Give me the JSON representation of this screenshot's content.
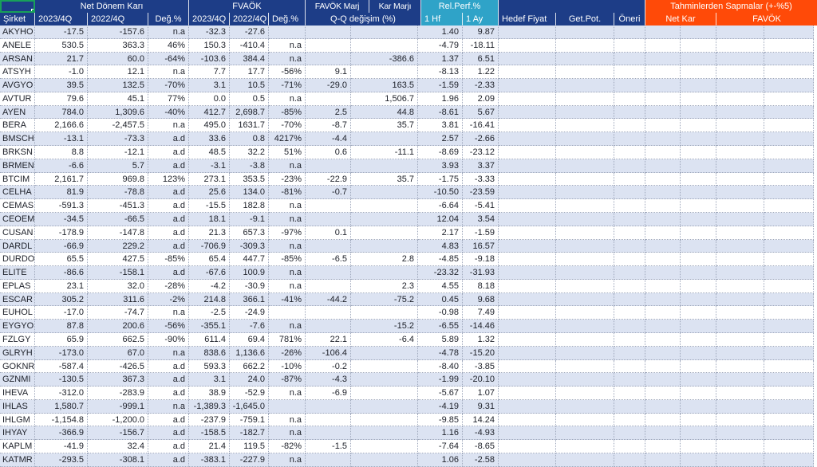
{
  "header": {
    "groups": {
      "net_donem_kari": "Net Dönem Karı",
      "fvaok": "FVAÖK",
      "favok_marj": "FAVÖK Marj",
      "kar_marji": "Kar Marjı",
      "rel_perf": "Rel.Perf.%",
      "tahmin": "Tahminlerden Sapmalar (+-%5)"
    },
    "cols": {
      "sirket": "Şirket",
      "q2023": "2023/4Q",
      "q2022": "2022/4Q",
      "deg": "Değ.%",
      "qq_degisim": "Q-Q değişim (%)",
      "hf1": "1 Hf",
      "ay1": "1 Ay",
      "hedef_fiyat": "Hedef Fiyat",
      "get_pot": "Get.Pot.",
      "oneri": "Öneri",
      "net_kar": "Net Kar",
      "favok": "FAVÖK"
    }
  },
  "colors": {
    "header_navy": "#1D3D87",
    "rel_perf_teal": "#2FA3C8",
    "deviation_orange": "#FF4A08",
    "row_stripe": "#DCE3F2",
    "gridline": "#9FA8BC",
    "selection_green": "#18A05A"
  },
  "rows": [
    [
      "AKYHO",
      "-17.5",
      "-157.6",
      "n.a",
      "-32.3",
      "-27.6",
      "",
      "",
      "",
      "1.40",
      "9.87"
    ],
    [
      "ANELE",
      "530.5",
      "363.3",
      "46%",
      "150.3",
      "-410.4",
      "n.a",
      "",
      "",
      "-4.79",
      "-18.11"
    ],
    [
      "ARSAN",
      "21.7",
      "60.0",
      "-64%",
      "-103.6",
      "384.4",
      "n.a",
      "",
      "-386.6",
      "1.37",
      "6.51"
    ],
    [
      "ATSYH",
      "-1.0",
      "12.1",
      "n.a",
      "7.7",
      "17.7",
      "-56%",
      "9.1",
      "",
      "-8.13",
      "1.22"
    ],
    [
      "AVGYO",
      "39.5",
      "132.5",
      "-70%",
      "3.1",
      "10.5",
      "-71%",
      "-29.0",
      "163.5",
      "-1.59",
      "-2.33"
    ],
    [
      "AVTUR",
      "79.6",
      "45.1",
      "77%",
      "0.0",
      "0.5",
      "n.a",
      "",
      "1,506.7",
      "1.96",
      "2.09"
    ],
    [
      "AYEN",
      "784.0",
      "1,309.6",
      "-40%",
      "412.7",
      "2,698.7",
      "-85%",
      "2.5",
      "44.8",
      "-8.61",
      "5.67"
    ],
    [
      "BERA",
      "2,166.6",
      "-2,457.5",
      "n.a",
      "495.0",
      "1631.7",
      "-70%",
      "-8.7",
      "35.7",
      "3.81",
      "-16.41"
    ],
    [
      "BMSCH",
      "-13.1",
      "-73.3",
      "a.d",
      "33.6",
      "0.8",
      "4217%",
      "-4.4",
      "",
      "2.57",
      "-2.66"
    ],
    [
      "BRKSN",
      "8.8",
      "-12.1",
      "a.d",
      "48.5",
      "32.2",
      "51%",
      "0.6",
      "-11.1",
      "-8.69",
      "-23.12"
    ],
    [
      "BRMEN",
      "-6.6",
      "5.7",
      "a.d",
      "-3.1",
      "-3.8",
      "n.a",
      "",
      "",
      "3.93",
      "3.37"
    ],
    [
      "BTCIM",
      "2,161.7",
      "969.8",
      "123%",
      "273.1",
      "353.5",
      "-23%",
      "-22.9",
      "35.7",
      "-1.75",
      "-3.33"
    ],
    [
      "CELHA",
      "81.9",
      "-78.8",
      "a.d",
      "25.6",
      "134.0",
      "-81%",
      "-0.7",
      "",
      "-10.50",
      "-23.59"
    ],
    [
      "CEMAS",
      "-591.3",
      "-451.3",
      "a.d",
      "-15.5",
      "182.8",
      "n.a",
      "",
      "",
      "-6.64",
      "-5.41"
    ],
    [
      "CEOEM",
      "-34.5",
      "-66.5",
      "a.d",
      "18.1",
      "-9.1",
      "n.a",
      "",
      "",
      "12.04",
      "3.54"
    ],
    [
      "CUSAN",
      "-178.9",
      "-147.8",
      "a.d",
      "21.3",
      "657.3",
      "-97%",
      "0.1",
      "",
      "2.17",
      "-1.59"
    ],
    [
      "DARDL",
      "-66.9",
      "229.2",
      "a.d",
      "-706.9",
      "-309.3",
      "n.a",
      "",
      "",
      "4.83",
      "16.57"
    ],
    [
      "DURDO",
      "65.5",
      "427.5",
      "-85%",
      "65.4",
      "447.7",
      "-85%",
      "-6.5",
      "2.8",
      "-4.85",
      "-9.18"
    ],
    [
      "ELITE",
      "-86.6",
      "-158.1",
      "a.d",
      "-67.6",
      "100.9",
      "n.a",
      "",
      "",
      "-23.32",
      "-31.93"
    ],
    [
      "EPLAS",
      "23.1",
      "32.0",
      "-28%",
      "-4.2",
      "-30.9",
      "n.a",
      "",
      "2.3",
      "4.55",
      "8.18"
    ],
    [
      "ESCAR",
      "305.2",
      "311.6",
      "-2%",
      "214.8",
      "366.1",
      "-41%",
      "-44.2",
      "-75.2",
      "0.45",
      "9.68"
    ],
    [
      "EUHOL",
      "-17.0",
      "-74.7",
      "n.a",
      "-2.5",
      "-24.9",
      "",
      "",
      "",
      "-0.98",
      "7.49"
    ],
    [
      "EYGYO",
      "87.8",
      "200.6",
      "-56%",
      "-355.1",
      "-7.6",
      "n.a",
      "",
      "-15.2",
      "-6.55",
      "-14.46"
    ],
    [
      "FZLGY",
      "65.9",
      "662.5",
      "-90%",
      "611.4",
      "69.4",
      "781%",
      "22.1",
      "-6.4",
      "5.89",
      "1.32"
    ],
    [
      "GLRYH",
      "-173.0",
      "67.0",
      "n.a",
      "838.6",
      "1,136.6",
      "-26%",
      "-106.4",
      "",
      "-4.78",
      "-15.20"
    ],
    [
      "GOKNR",
      "-587.4",
      "-426.5",
      "a.d",
      "593.3",
      "662.2",
      "-10%",
      "-0.2",
      "",
      "-8.40",
      "-3.85"
    ],
    [
      "GZNMI",
      "-130.5",
      "367.3",
      "a.d",
      "3.1",
      "24.0",
      "-87%",
      "-4.3",
      "",
      "-1.99",
      "-20.10"
    ],
    [
      "IHEVA",
      "-312.0",
      "-283.9",
      "a.d",
      "38.9",
      "-52.9",
      "n.a",
      "-6.9",
      "",
      "-5.67",
      "1.07"
    ],
    [
      "IHLAS",
      "1,580.7",
      "-999.1",
      "n.a",
      "-1,389.3",
      "-1,645.0",
      "",
      "",
      "",
      "-4.19",
      "9.31"
    ],
    [
      "IHLGM",
      "-1,154.8",
      "-1,200.0",
      "a.d",
      "-237.9",
      "-759.1",
      "n.a",
      "",
      "",
      "-9.85",
      "14.24"
    ],
    [
      "IHYAY",
      "-366.9",
      "-156.7",
      "a.d",
      "-158.5",
      "-182.7",
      "n.a",
      "",
      "",
      "1.16",
      "-4.93"
    ],
    [
      "KAPLM",
      "-41.9",
      "32.4",
      "a.d",
      "21.4",
      "119.5",
      "-82%",
      "-1.5",
      "",
      "-7.64",
      "-8.65"
    ],
    [
      "KATMR",
      "-293.5",
      "-308.1",
      "a.d",
      "-383.1",
      "-227.9",
      "n.a",
      "",
      "",
      "1.06",
      "-2.58"
    ]
  ]
}
